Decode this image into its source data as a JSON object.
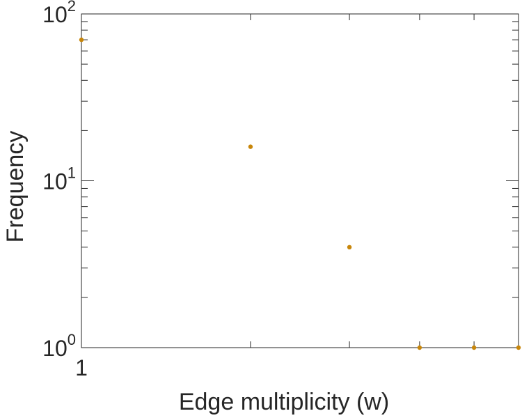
{
  "chart_data": {
    "type": "scatter",
    "title": "",
    "xlabel": "Edge multiplicity (w)",
    "ylabel": "Frequency",
    "xscale": "log",
    "yscale": "log",
    "xlim": [
      1,
      6
    ],
    "ylim": [
      1,
      100
    ],
    "x_tick_labels": [
      {
        "value": 1,
        "label": "1"
      }
    ],
    "y_tick_labels": [
      {
        "value": 1,
        "base": "10",
        "exp": "0"
      },
      {
        "value": 10,
        "base": "10",
        "exp": "1"
      },
      {
        "value": 100,
        "base": "10",
        "exp": "2"
      }
    ],
    "grid": false,
    "marker_color": "#c8860a",
    "axis_color": "#262626",
    "points": [
      {
        "x": 1,
        "y": 70
      },
      {
        "x": 2,
        "y": 16
      },
      {
        "x": 3,
        "y": 4
      },
      {
        "x": 4,
        "y": 1
      },
      {
        "x": 5,
        "y": 1
      },
      {
        "x": 6,
        "y": 1
      }
    ]
  }
}
